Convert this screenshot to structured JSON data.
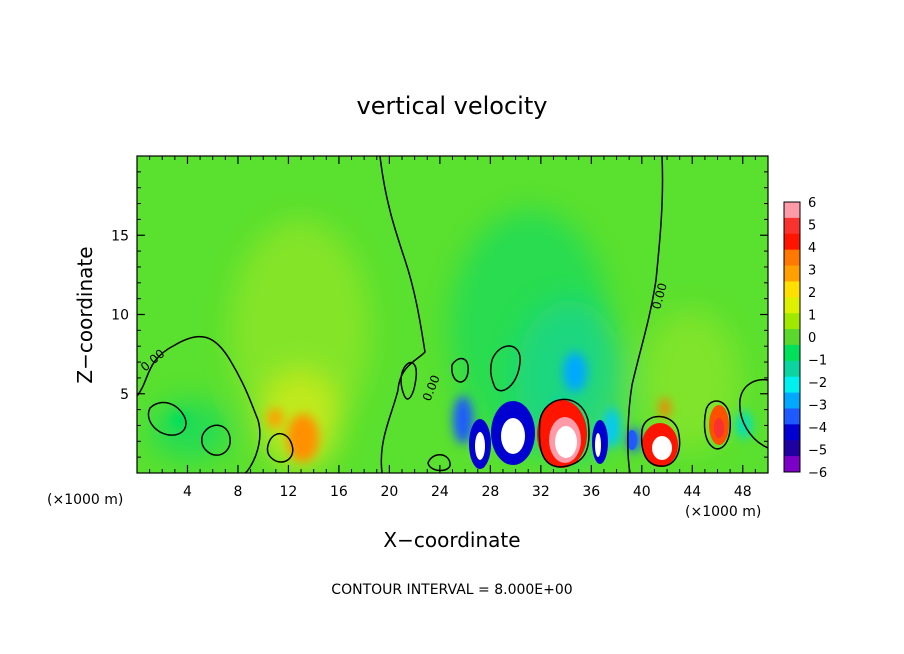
{
  "chart_data": {
    "type": "heatmap",
    "title": "vertical velocity",
    "xlabel": "X−coordinate",
    "ylabel": "Z−coordinate",
    "x_unit": "(×1000 m)",
    "x_unit_right": "(×1000 m)",
    "xlim": [
      0,
      50
    ],
    "ylim": [
      0,
      20
    ],
    "x_ticks": [
      "4",
      "8",
      "12",
      "16",
      "20",
      "24",
      "28",
      "32",
      "36",
      "40",
      "44",
      "48"
    ],
    "y_ticks": [
      "5",
      "10",
      "15"
    ],
    "colorbar": {
      "range": [
        -6,
        6
      ],
      "labels": [
        "6",
        "5",
        "4",
        "3",
        "2",
        "1",
        "0",
        "−1",
        "−2",
        "−3",
        "−4",
        "−5",
        "−6"
      ],
      "colors": [
        "#ff9aa8",
        "#f8322e",
        "#ff1400",
        "#ff7800",
        "#ffa000",
        "#ffe000",
        "#dcf000",
        "#a0e800",
        "#5ad82e",
        "#00e05a",
        "#0cd4a0",
        "#00f0f0",
        "#00a8ff",
        "#1e5aff",
        "#0000d0",
        "#2000a0",
        "#7c00c8"
      ]
    },
    "contour_labels": [
      "0.00",
      "0.00",
      "0.00"
    ],
    "contour_interval_text": "CONTOUR INTERVAL = 8.000E+00"
  }
}
